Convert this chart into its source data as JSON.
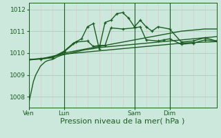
{
  "background_color": "#cce8dc",
  "plot_bg_color": "#cce8dc",
  "grid_color_major": "#a8c8b8",
  "grid_color_minor": "#e8c0c0",
  "line_color": "#1a5c20",
  "ylim": [
    1007.5,
    1012.3
  ],
  "yticks": [
    1008,
    1009,
    1010,
    1011,
    1012
  ],
  "xlabel": "Pression niveau de la mer( hPa )",
  "xlabel_fontsize": 8,
  "tick_fontsize": 6.5,
  "day_labels": [
    "Ven",
    "Lun",
    "Sam",
    "Dim"
  ],
  "day_positions": [
    0,
    30,
    90,
    120
  ],
  "total_points": 160,
  "series": [
    {
      "x": [
        0,
        2,
        4,
        6,
        8,
        10,
        12,
        14,
        16,
        18,
        20,
        22,
        24,
        28,
        32,
        36,
        40,
        44,
        48,
        55,
        60,
        70,
        80,
        90,
        100,
        110,
        120,
        130,
        140,
        150,
        160
      ],
      "y": [
        1007.7,
        1008.2,
        1008.7,
        1009.0,
        1009.2,
        1009.4,
        1009.5,
        1009.6,
        1009.65,
        1009.68,
        1009.7,
        1009.75,
        1009.82,
        1009.9,
        1009.95,
        1010.0,
        1010.05,
        1010.1,
        1010.15,
        1010.2,
        1010.25,
        1010.3,
        1010.35,
        1010.4,
        1010.45,
        1010.5,
        1010.55,
        1010.6,
        1010.65,
        1010.7,
        1010.75
      ],
      "marker": null,
      "lw": 1.0
    },
    {
      "x": [
        0,
        4,
        8,
        12,
        16,
        20,
        24,
        30,
        40,
        50,
        60,
        70,
        80,
        90,
        100,
        110,
        120,
        130,
        140,
        150,
        160
      ],
      "y": [
        1009.68,
        1009.7,
        1009.72,
        1009.75,
        1009.78,
        1009.8,
        1009.88,
        1009.95,
        1010.0,
        1010.05,
        1010.1,
        1010.15,
        1010.2,
        1010.25,
        1010.3,
        1010.35,
        1010.4,
        1010.45,
        1010.48,
        1010.5,
        1010.52
      ],
      "marker": null,
      "lw": 1.0
    },
    {
      "x": [
        0,
        4,
        8,
        12,
        16,
        20,
        24,
        30,
        40,
        50,
        60,
        70,
        80,
        90,
        100,
        110,
        120,
        130,
        140,
        150,
        160
      ],
      "y": [
        1009.7,
        1009.72,
        1009.74,
        1009.76,
        1009.8,
        1009.85,
        1009.9,
        1010.0,
        1010.1,
        1010.2,
        1010.3,
        1010.4,
        1010.5,
        1010.6,
        1010.7,
        1010.8,
        1010.9,
        1011.0,
        1011.05,
        1011.1,
        1011.1
      ],
      "marker": null,
      "lw": 1.0
    },
    {
      "x": [
        0,
        10,
        20,
        30,
        40,
        50,
        55,
        60,
        65,
        70,
        80,
        90,
        95,
        100,
        110,
        115,
        120,
        130,
        140,
        150,
        160
      ],
      "y": [
        1009.7,
        1009.73,
        1009.78,
        1010.05,
        1010.5,
        1010.55,
        1010.3,
        1010.35,
        1010.35,
        1011.15,
        1011.1,
        1011.15,
        1011.2,
        1010.6,
        1010.55,
        1010.6,
        1010.65,
        1010.4,
        1010.45,
        1010.6,
        1010.55
      ],
      "marker": "+",
      "lw": 1.0
    },
    {
      "x": [
        10,
        20,
        30,
        38,
        45,
        50,
        55,
        60,
        65,
        70,
        75,
        80,
        85,
        90,
        95,
        100,
        105,
        110,
        120,
        130,
        140,
        150,
        160
      ],
      "y": [
        1009.72,
        1009.8,
        1010.08,
        1010.45,
        1010.65,
        1011.2,
        1011.35,
        1010.2,
        1011.4,
        1011.5,
        1011.8,
        1011.85,
        1011.6,
        1011.2,
        1011.5,
        1011.2,
        1011.0,
        1011.2,
        1011.1,
        1010.5,
        1010.55,
        1010.7,
        1010.55
      ],
      "marker": "+",
      "lw": 1.0
    }
  ]
}
